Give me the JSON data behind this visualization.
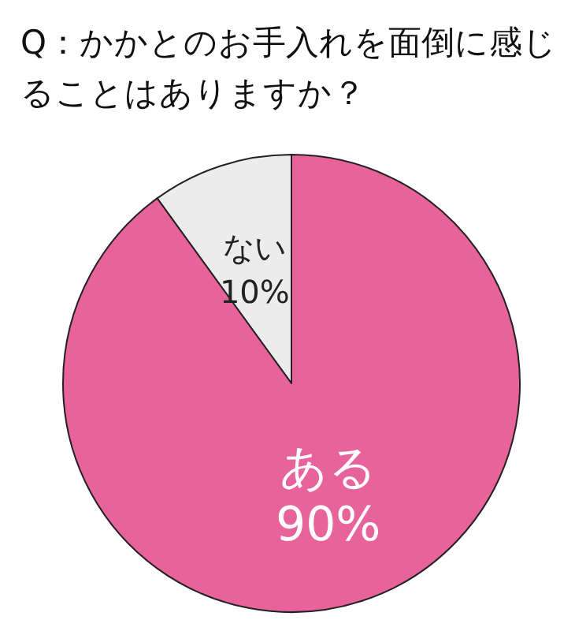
{
  "chart_data": {
    "type": "pie",
    "title": "Q：かかとのお手入れを面倒に感じることはありますか？",
    "categories": [
      "ない",
      "ある"
    ],
    "values": [
      10,
      90
    ],
    "colors": [
      "#ececec",
      "#e8629c"
    ],
    "value_labels": [
      "10%",
      "90%"
    ]
  }
}
